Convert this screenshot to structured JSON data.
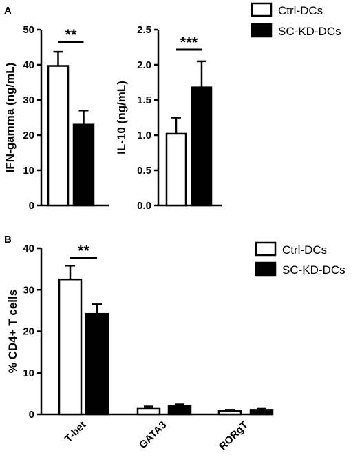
{
  "panels": {
    "a_label": "A",
    "b_label": "B"
  },
  "legend": {
    "ctrl": "Ctrl-DCs",
    "sc": "SC-KD-DCs"
  },
  "colors": {
    "ctrl_fill": "#ffffff",
    "sc_fill": "#000000",
    "stroke": "#000000"
  },
  "chart_data": [
    {
      "type": "bar",
      "panel": "A",
      "ylabel": "IFN-gamma (ng/mL)",
      "ylim": [
        0,
        50
      ],
      "yticks": [
        0,
        10,
        20,
        30,
        40,
        50
      ],
      "series": [
        {
          "name": "Ctrl-DCs",
          "values": [
            39.7
          ],
          "errors": [
            4.0
          ]
        },
        {
          "name": "SC-KD-DCs",
          "values": [
            23.0
          ],
          "errors": [
            4.0
          ]
        }
      ],
      "significance": "**"
    },
    {
      "type": "bar",
      "panel": "A",
      "ylabel": "IL-10 (ng/mL)",
      "ylim": [
        0,
        2.5
      ],
      "yticks": [
        "0.0",
        "0.5",
        "1.0",
        "1.5",
        "2.0",
        "2.5"
      ],
      "series": [
        {
          "name": "Ctrl-DCs",
          "values": [
            1.02
          ],
          "errors": [
            0.23
          ]
        },
        {
          "name": "SC-KD-DCs",
          "values": [
            1.68
          ],
          "errors": [
            0.37
          ]
        }
      ],
      "significance": "***"
    },
    {
      "type": "bar",
      "panel": "B",
      "ylabel": "% CD4+ T cells",
      "ylim": [
        0,
        40
      ],
      "yticks": [
        0,
        10,
        20,
        30,
        40
      ],
      "categories": [
        "T-bet",
        "GATA3",
        "RORgT"
      ],
      "series": [
        {
          "name": "Ctrl-DCs",
          "values": [
            32.5,
            1.5,
            0.8
          ],
          "errors": [
            3.3,
            0.4,
            0.3
          ]
        },
        {
          "name": "SC-KD-DCs",
          "values": [
            24.2,
            2.0,
            1.1
          ],
          "errors": [
            2.3,
            0.4,
            0.4
          ]
        }
      ],
      "significance": "**"
    }
  ]
}
